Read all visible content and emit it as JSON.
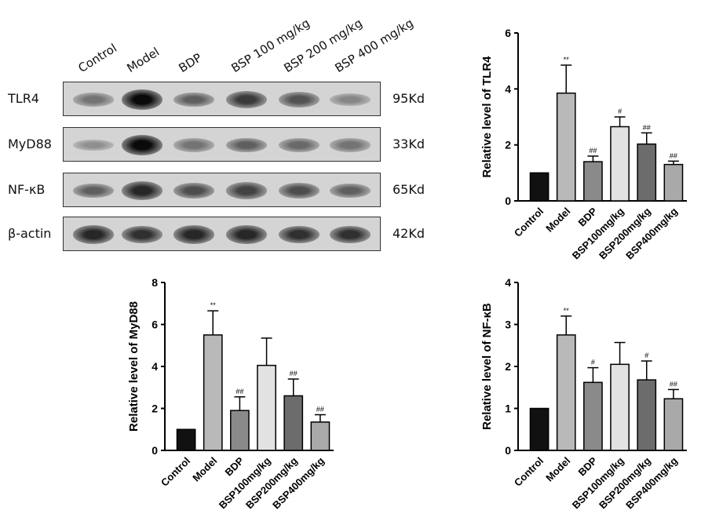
{
  "blot": {
    "lanes": [
      "Control",
      "Model",
      "BDP",
      "BSP 100 mg/kg",
      "BSP 200 mg/kg",
      "BSP 400 mg/kg"
    ],
    "rows": [
      {
        "protein": "TLR4",
        "kd": "95Kd",
        "intensity": [
          0.45,
          1.0,
          0.55,
          0.75,
          0.62,
          0.35
        ]
      },
      {
        "protein": "MyD88",
        "kd": "33Kd",
        "intensity": [
          0.3,
          1.0,
          0.45,
          0.55,
          0.5,
          0.45
        ]
      },
      {
        "protein": "NF-κB",
        "kd": "65Kd",
        "intensity": [
          0.55,
          0.85,
          0.65,
          0.7,
          0.65,
          0.55
        ]
      },
      {
        "protein": "β-actin",
        "kd": "42Kd",
        "intensity": [
          0.85,
          0.8,
          0.85,
          0.85,
          0.8,
          0.8
        ]
      }
    ]
  },
  "chart_data": [
    {
      "type": "bar",
      "id": "tlr4",
      "ylabel": "Relative level of TLR4",
      "categories": [
        "Control",
        "Model",
        "BDP",
        "BSP100mg/kg",
        "BSP200mg/kg",
        "BSP400mg/kg"
      ],
      "values": [
        1.0,
        3.85,
        1.4,
        2.65,
        2.03,
        1.3
      ],
      "errors": [
        0,
        1.0,
        0.2,
        0.35,
        0.4,
        0.12
      ],
      "significance": [
        "",
        "**",
        "##",
        "#",
        "##",
        "##"
      ],
      "ylim": [
        0,
        6
      ],
      "yticks": [
        0,
        2,
        4,
        6
      ],
      "colors": [
        "#111111",
        "#b9b9b9",
        "#8a8a8a",
        "#e2e2e2",
        "#6c6c6c",
        "#a9a9a9"
      ]
    },
    {
      "type": "bar",
      "id": "myd88",
      "ylabel": "Relative level of MyD88",
      "categories": [
        "Control",
        "Model",
        "BDP",
        "BSP100mg/kg",
        "BSP200mg/kg",
        "BSP400mg/kg"
      ],
      "values": [
        1.0,
        5.5,
        1.9,
        4.05,
        2.6,
        1.35
      ],
      "errors": [
        0,
        1.15,
        0.65,
        1.3,
        0.8,
        0.35
      ],
      "significance": [
        "",
        "**",
        "##",
        "",
        "##",
        "##"
      ],
      "ylim": [
        0,
        8
      ],
      "yticks": [
        0,
        2,
        4,
        6,
        8
      ],
      "colors": [
        "#111111",
        "#b9b9b9",
        "#8a8a8a",
        "#e2e2e2",
        "#6c6c6c",
        "#a9a9a9"
      ]
    },
    {
      "type": "bar",
      "id": "nfkb",
      "ylabel": "Relative level of NF-κB",
      "categories": [
        "Control",
        "Model",
        "BDP",
        "BSP100mg/kg",
        "BSP200mg/kg",
        "BSP400mg/kg"
      ],
      "values": [
        1.0,
        2.75,
        1.62,
        2.05,
        1.68,
        1.23
      ],
      "errors": [
        0,
        0.45,
        0.35,
        0.52,
        0.45,
        0.22
      ],
      "significance": [
        "",
        "**",
        "#",
        "",
        "#",
        "##"
      ],
      "ylim": [
        0,
        4
      ],
      "yticks": [
        0,
        1,
        2,
        3,
        4
      ],
      "colors": [
        "#111111",
        "#b9b9b9",
        "#8a8a8a",
        "#e2e2e2",
        "#6c6c6c",
        "#a9a9a9"
      ]
    }
  ]
}
